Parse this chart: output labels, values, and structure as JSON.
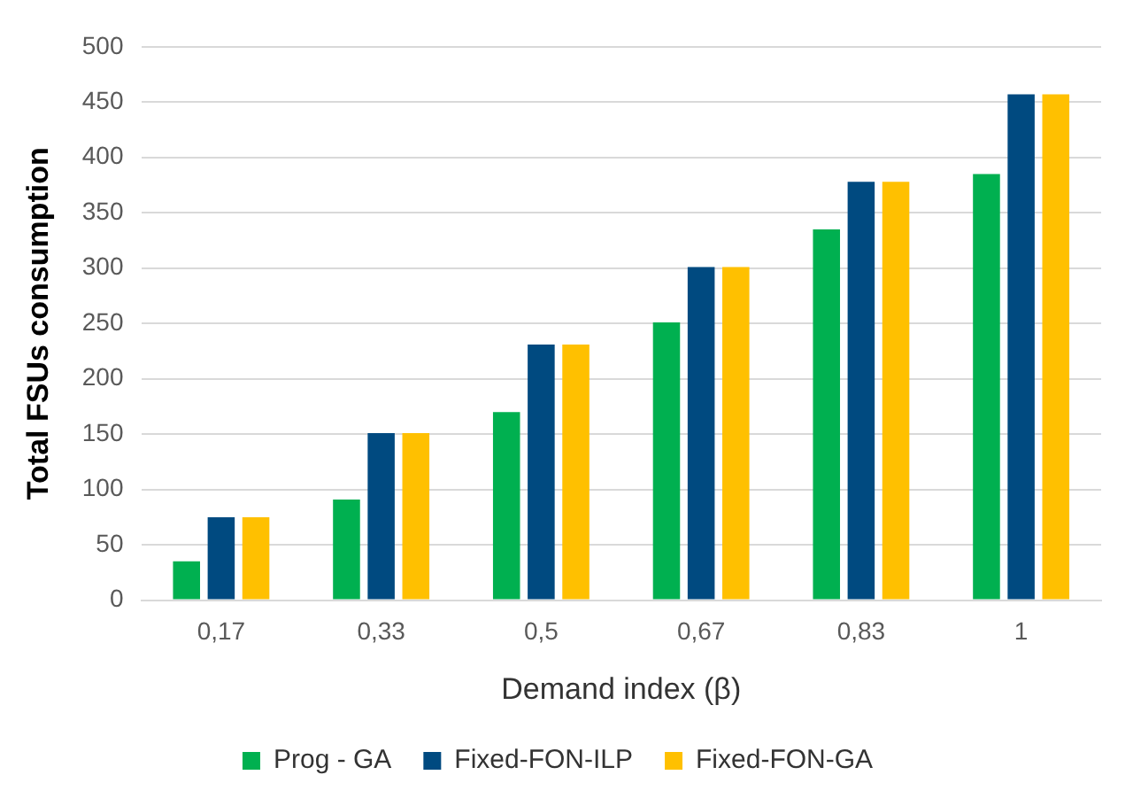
{
  "chart_data": {
    "type": "bar",
    "xlabel": "Demand index (β)",
    "ylabel": "Total FSUs consumption",
    "categories": [
      "0,17",
      "0,33",
      "0,5",
      "0,67",
      "0,83",
      "1"
    ],
    "series": [
      {
        "name": "Prog - GA",
        "color": "#00b050",
        "values": [
          35,
          91,
          170,
          251,
          335,
          385
        ]
      },
      {
        "name": "Fixed-FON-ILP",
        "color": "#004a80",
        "values": [
          75,
          151,
          231,
          301,
          378,
          457
        ]
      },
      {
        "name": "Fixed-FON-GA",
        "color": "#ffc000",
        "values": [
          75,
          151,
          231,
          301,
          378,
          457
        ]
      }
    ],
    "ylim": [
      0,
      500
    ],
    "yticks": [
      0,
      50,
      100,
      150,
      200,
      250,
      300,
      350,
      400,
      450,
      500
    ],
    "grid": "y",
    "legend": "bottom"
  }
}
